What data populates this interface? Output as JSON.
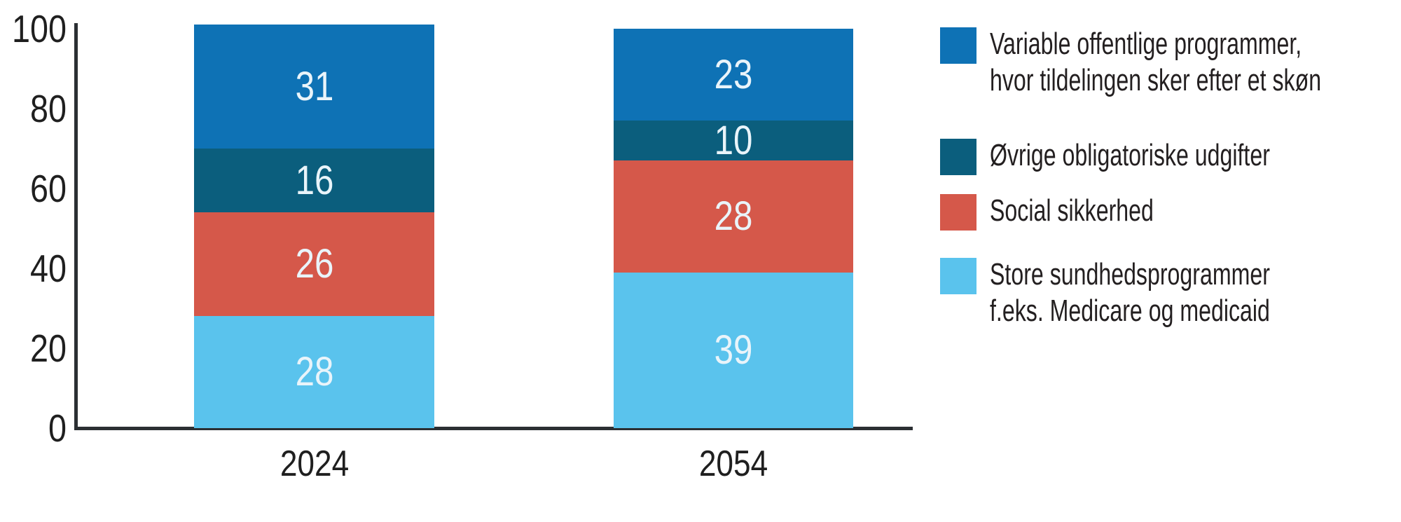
{
  "chart_data": {
    "type": "bar",
    "stacked": true,
    "title": "",
    "xlabel": "",
    "ylabel": "",
    "categories": [
      "2024",
      "2054"
    ],
    "series": [
      {
        "name": "Store sundhedsprogrammer f.eks. Medicare og medicaid",
        "color": "#5ac3ed",
        "values": [
          28,
          39
        ]
      },
      {
        "name": "Social sikkerhed",
        "color": "#d5584a",
        "values": [
          26,
          28
        ]
      },
      {
        "name": "Øvrige obligatoriske udgifter",
        "color": "#0b5e7d",
        "values": [
          16,
          10
        ]
      },
      {
        "name": "Variable offentlige programmer, hvor tildelingen sker efter et skøn",
        "color": "#0e72b5",
        "values": [
          31,
          23
        ]
      }
    ],
    "y_ticks": [
      0,
      20,
      40,
      60,
      80,
      100
    ],
    "ylim": [
      0,
      100
    ],
    "grid": false,
    "legend_position": "right",
    "bar_totals": [
      101,
      100
    ],
    "value_label_color": "#e9f4fa"
  },
  "legend": {
    "items": [
      {
        "label": "Variable offentlige programmer,\nhvor tildelingen sker efter et skøn",
        "color": "#0e72b5"
      },
      {
        "label": "Øvrige obligatoriske udgifter",
        "color": "#0b5e7d"
      },
      {
        "label": "Social sikkerhed",
        "color": "#d5584a"
      },
      {
        "label": "Store sundhedsprogrammer\nf.eks. Medicare og medicaid",
        "color": "#5ac3ed"
      }
    ]
  },
  "colors": {
    "axis": "#2b2f33",
    "tick_text": "#1f1f1f",
    "legend_text": "#231f20",
    "background": "#ffffff"
  }
}
